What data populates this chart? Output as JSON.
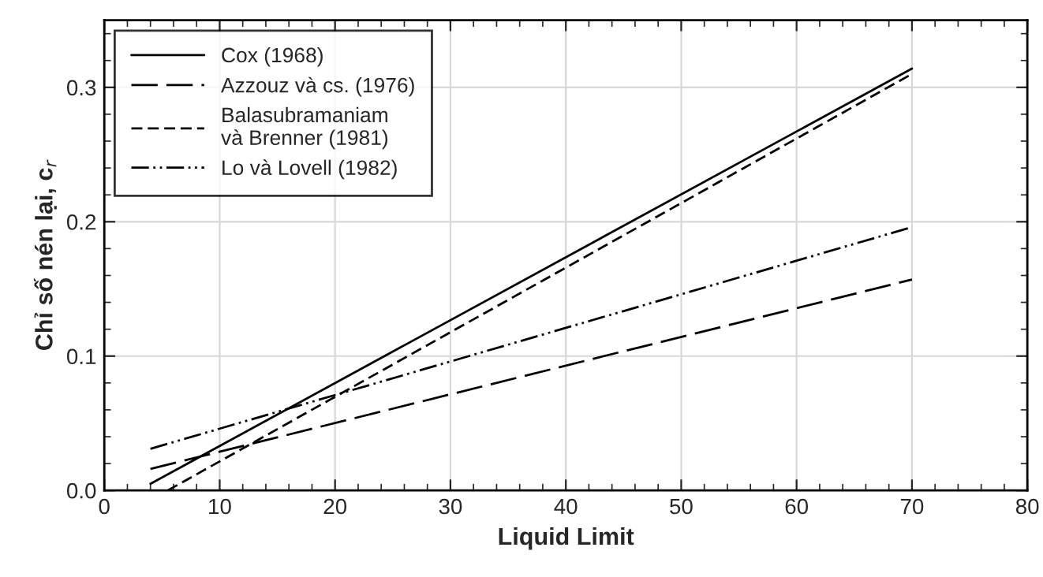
{
  "chart_data": {
    "type": "line",
    "xlabel": "Liquid Limit",
    "ylabel": "Chỉ số nén lại, c$_{r}$",
    "xlim": [
      0,
      80
    ],
    "xticks": [
      0,
      10,
      20,
      30,
      40,
      50,
      60,
      70,
      80
    ],
    "ylim": [
      0,
      0.35
    ],
    "yticks": [
      {
        "value": 0,
        "label": "0.0"
      },
      0.1,
      0.2,
      0.3
    ],
    "grid": true,
    "legend": "top left",
    "marker": "none",
    "series": [
      {
        "name": "Cox (1968)",
        "color": "#000000",
        "line_style": "solid",
        "x": [
          4,
          70
        ],
        "values": [
          0.005,
          0.314
        ]
      },
      {
        "name": "Azzouz và cs. (1976)",
        "color": "#000000",
        "line_style": "longdash",
        "x": [
          4,
          70
        ],
        "values": [
          0.016,
          0.157
        ]
      },
      {
        "name": "Balasubramaniam\nvà Brenner (1981)",
        "color": "#000000",
        "line_style": "dashed",
        "x": [
          5.5,
          70
        ],
        "values": [
          0.0,
          0.31
        ]
      },
      {
        "name": "Lo và Lovell (1982)",
        "color": "#000000",
        "line_style": "dashdotdot",
        "x": [
          4,
          70
        ],
        "values": [
          0.031,
          0.196
        ]
      }
    ]
  }
}
